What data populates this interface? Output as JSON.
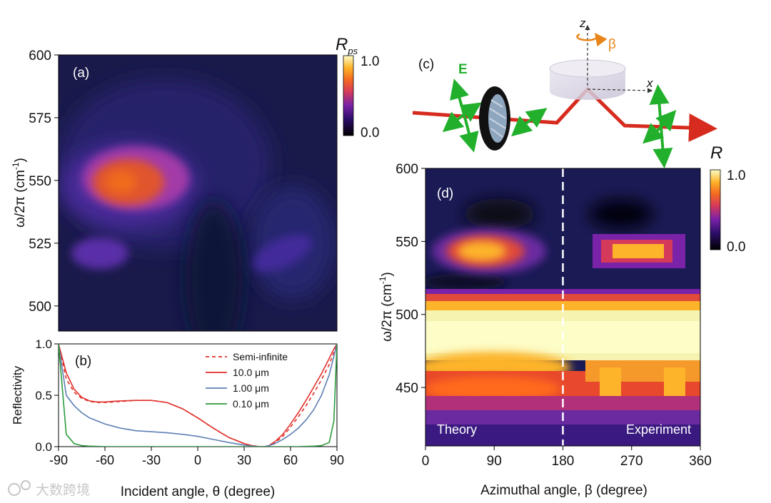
{
  "figure": {
    "watermark": "大数跨境",
    "colors": {
      "beam": "#d62b1e",
      "field": "#22b02c",
      "beta": "#e8841a",
      "dashed": "#ffffff"
    }
  },
  "chart_data": [
    {
      "panel": "(a)",
      "type": "heatmap",
      "title": "",
      "colorbar": {
        "label_main": "R",
        "label_sub": "ps",
        "min_label": "0.0",
        "max_label": "1.0",
        "range": [
          0.0,
          1.0
        ]
      },
      "xlabel": "",
      "xlim": [
        -90,
        90
      ],
      "ylabel": {
        "main": "ω/2π (cm",
        "sup": "-1",
        "close": ")"
      },
      "ylim": [
        490,
        600
      ],
      "yticks": [
        500,
        525,
        550,
        575,
        600
      ],
      "ytick_labels": [
        "500",
        "525",
        "550",
        "575",
        "600"
      ],
      "features": [
        {
          "name": "main lobe",
          "theta": -50,
          "omega": 549,
          "value": 0.55
        },
        {
          "name": "lower-left lobe",
          "theta": -65,
          "omega": 522,
          "value": 0.25
        },
        {
          "name": "lower-right lobe",
          "theta": 55,
          "omega": 520,
          "value": 0.18
        }
      ]
    },
    {
      "panel": "(b)",
      "type": "line",
      "xlabel": "Incident angle, θ (degree)",
      "ylabel": "Reflectivity",
      "xlim": [
        -90,
        90
      ],
      "ylim": [
        0,
        1
      ],
      "xticks": [
        -90,
        -60,
        -30,
        0,
        30,
        60,
        90
      ],
      "xtick_labels": [
        "-90",
        "-60",
        "-30",
        "0",
        "30",
        "60",
        "90"
      ],
      "yticks": [
        0,
        0.5,
        1.0
      ],
      "ytick_labels": [
        "0.0",
        "0.5",
        "1.0"
      ],
      "x": [
        -90,
        -85,
        -80,
        -75,
        -70,
        -65,
        -60,
        -55,
        -50,
        -40,
        -30,
        -20,
        -10,
        0,
        10,
        20,
        30,
        35,
        40,
        43,
        46,
        50,
        55,
        60,
        65,
        70,
        75,
        80,
        85,
        88,
        90
      ],
      "series": [
        {
          "name": "Semi-infinite",
          "color": "#e0302a",
          "dashed": true,
          "values": [
            1.0,
            0.66,
            0.53,
            0.47,
            0.44,
            0.43,
            0.43,
            0.435,
            0.44,
            0.45,
            0.45,
            0.43,
            0.37,
            0.28,
            0.18,
            0.09,
            0.03,
            0.01,
            0.0,
            0.0,
            0.01,
            0.04,
            0.1,
            0.19,
            0.29,
            0.4,
            0.52,
            0.65,
            0.8,
            0.92,
            1.0
          ]
        },
        {
          "name": "10.0 μm",
          "color": "#e0302a",
          "dashed": false,
          "values": [
            1.0,
            0.72,
            0.56,
            0.48,
            0.445,
            0.435,
            0.435,
            0.44,
            0.445,
            0.45,
            0.45,
            0.43,
            0.37,
            0.28,
            0.18,
            0.09,
            0.03,
            0.01,
            0.0,
            0.0,
            0.01,
            0.05,
            0.12,
            0.22,
            0.33,
            0.45,
            0.58,
            0.71,
            0.86,
            0.95,
            1.0
          ]
        },
        {
          "name": "1.00 μm",
          "color": "#5f7fb5",
          "dashed": false,
          "values": [
            1.0,
            0.5,
            0.4,
            0.33,
            0.28,
            0.25,
            0.22,
            0.2,
            0.18,
            0.155,
            0.145,
            0.135,
            0.12,
            0.1,
            0.07,
            0.04,
            0.015,
            0.005,
            0.0,
            0.0,
            0.01,
            0.03,
            0.07,
            0.12,
            0.18,
            0.26,
            0.36,
            0.5,
            0.7,
            0.88,
            1.0
          ]
        },
        {
          "name": "0.10 μm",
          "color": "#2a9a3c",
          "dashed": false,
          "values": [
            1.0,
            0.12,
            0.03,
            0.01,
            0.005,
            0.002,
            0.0,
            0.0,
            0.0,
            0.0,
            0.0,
            0.0,
            0.0,
            0.0,
            0.0,
            0.0,
            0.0,
            0.0,
            0.0,
            0.0,
            0.0,
            0.0,
            0.0,
            0.0,
            0.0,
            0.002,
            0.005,
            0.01,
            0.04,
            0.25,
            1.0
          ]
        }
      ],
      "legend": "top-right"
    },
    {
      "panel": "(c)",
      "type": "diagram",
      "labels": {
        "field": "E",
        "axis_z": "z",
        "axis_x": "x",
        "rotation": "β"
      }
    },
    {
      "panel": "(d)",
      "type": "heatmap",
      "colorbar": {
        "label": "R",
        "min_label": "0.0",
        "max_label": "1.0",
        "range": [
          0.0,
          1.0
        ]
      },
      "xlabel": "Azimuthal angle, β (degree)",
      "xlim": [
        0,
        360
      ],
      "xticks": [
        0,
        90,
        180,
        270,
        360
      ],
      "xtick_labels": [
        "0",
        "90",
        "180",
        "270",
        "360"
      ],
      "ylabel": {
        "main": "ω/2π (cm",
        "sup": "-1",
        "close": ")"
      },
      "ylim": [
        410,
        600
      ],
      "yticks": [
        450,
        500,
        550,
        600
      ],
      "ytick_labels": [
        "450",
        "500",
        "550",
        "600"
      ],
      "divider_at": 180,
      "annotations": [
        "Theory",
        "Experiment"
      ],
      "features": [
        {
          "name": "upper lobe (theory)",
          "beta": 75,
          "omega": 544,
          "value": 0.85
        },
        {
          "name": "upper lobe (experiment)",
          "beta": 275,
          "omega": 544,
          "value": 0.7
        },
        {
          "name": "reststrahlen band",
          "omega_from": 452,
          "omega_to": 512,
          "value": 1.0
        },
        {
          "name": "lower band",
          "omega_from": 440,
          "omega_to": 462,
          "value": 0.55
        }
      ]
    }
  ]
}
